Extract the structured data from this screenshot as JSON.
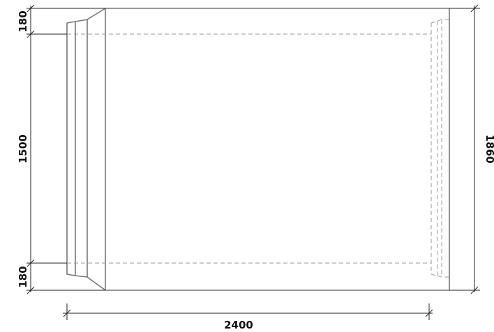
{
  "dimensions": {
    "top_flange": "180",
    "middle": "1500",
    "bottom_flange": "180",
    "length": "2400",
    "height": "1860"
  }
}
